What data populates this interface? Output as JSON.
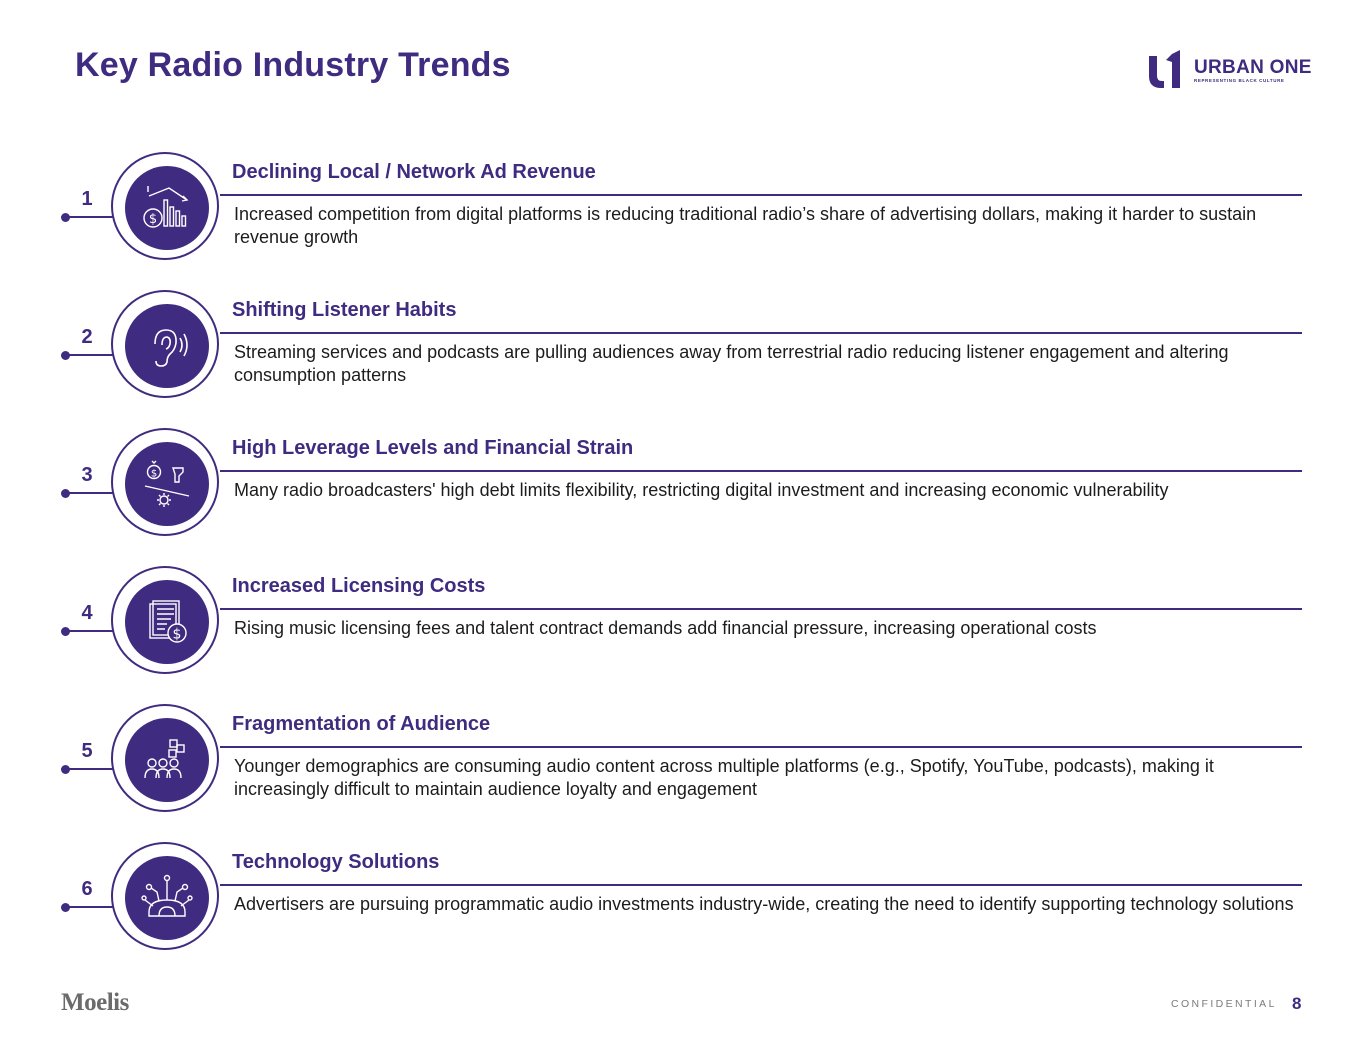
{
  "page": {
    "title": "Key Radio Industry Trends",
    "footer_brand": "Moelis",
    "confidential": "CONFIDENTIAL",
    "page_number": "8"
  },
  "logo": {
    "wordmark": "URBAN ONE",
    "tagline": "REPRESENTING BLACK CULTURE"
  },
  "colors": {
    "accent": "#3f2b7f",
    "text": "#1c1c1c",
    "muted": "#7a7a7a"
  },
  "trends": [
    {
      "number": "1",
      "icon": "declining-revenue-icon",
      "title": "Declining Local / Network Ad Revenue",
      "description": "Increased competition from digital platforms is reducing traditional radio’s share of advertising dollars, making it harder to sustain revenue growth"
    },
    {
      "number": "2",
      "icon": "ear-listening-icon",
      "title": "Shifting Listener Habits",
      "description": "Streaming services and podcasts are pulling audiences away from terrestrial radio reducing listener engagement and altering consumption patterns"
    },
    {
      "number": "3",
      "icon": "debt-balance-icon",
      "title": "High Leverage Levels and Financial Strain",
      "description": "Many radio broadcasters' high debt limits flexibility, restricting digital investment and increasing economic vulnerability"
    },
    {
      "number": "4",
      "icon": "contract-cost-icon",
      "title": "Increased Licensing Costs",
      "description": "Rising music licensing fees and talent contract demands add financial pressure, increasing operational costs"
    },
    {
      "number": "5",
      "icon": "audience-platforms-icon",
      "title": "Fragmentation of Audience",
      "description": "Younger demographics are consuming audio content across multiple platforms (e.g., Spotify, YouTube, podcasts), making it increasingly difficult to maintain audience loyalty and engagement"
    },
    {
      "number": "6",
      "icon": "technology-network-icon",
      "title": "Technology Solutions",
      "description": "Advertisers are pursuing programmatic audio investments industry-wide, creating the need to identify supporting technology solutions"
    }
  ]
}
